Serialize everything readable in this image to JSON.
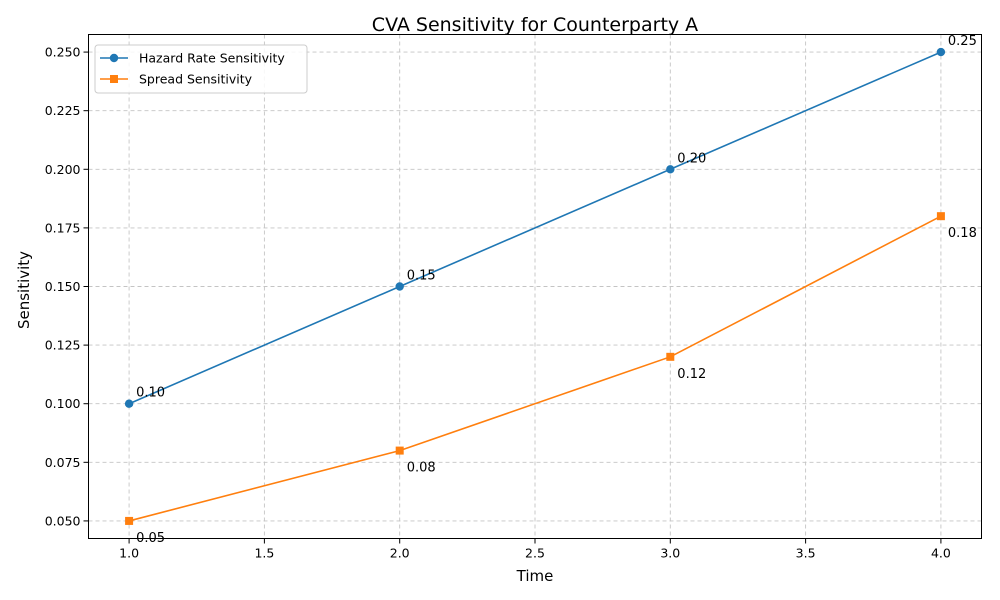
{
  "chart_data": {
    "type": "line",
    "title": "CVA Sensitivity for Counterparty A",
    "xlabel": "Time",
    "ylabel": "Sensitivity",
    "x": [
      1.0,
      2.0,
      3.0,
      4.0
    ],
    "xlim": [
      0.85,
      4.15
    ],
    "ylim": [
      0.0425,
      0.2575
    ],
    "x_ticks": [
      "1.0",
      "1.5",
      "2.0",
      "2.5",
      "3.0",
      "3.5",
      "4.0"
    ],
    "y_ticks": [
      "0.050",
      "0.075",
      "0.100",
      "0.125",
      "0.150",
      "0.175",
      "0.200",
      "0.225",
      "0.250"
    ],
    "grid": true,
    "grid_style": "dashed",
    "legend_position": "upper-left",
    "series": [
      {
        "name": "Hazard Rate Sensitivity",
        "color": "#1f77b4",
        "marker": "circle",
        "values": [
          0.1,
          0.15,
          0.2,
          0.25
        ],
        "labels": [
          "0.10",
          "0.15",
          "0.20",
          "0.25"
        ],
        "label_position": "above"
      },
      {
        "name": "Spread Sensitivity",
        "color": "#ff7f0e",
        "marker": "square",
        "values": [
          0.05,
          0.08,
          0.12,
          0.18
        ],
        "labels": [
          "0.05",
          "0.08",
          "0.12",
          "0.18"
        ],
        "label_position": "below"
      }
    ]
  }
}
